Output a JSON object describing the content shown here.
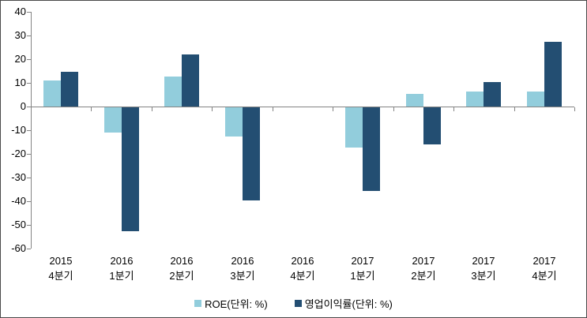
{
  "chart_data": {
    "type": "bar",
    "title": "",
    "xlabel": "",
    "ylabel": "",
    "categories": [
      {
        "line1": "2015",
        "line2": "4분기"
      },
      {
        "line1": "2016",
        "line2": "1분기"
      },
      {
        "line1": "2016",
        "line2": "2분기"
      },
      {
        "line1": "2016",
        "line2": "3분기"
      },
      {
        "line1": "2016",
        "line2": "4분기"
      },
      {
        "line1": "2017",
        "line2": "1분기"
      },
      {
        "line1": "2017",
        "line2": "2분기"
      },
      {
        "line1": "2017",
        "line2": "3분기"
      },
      {
        "line1": "2017",
        "line2": "4분기"
      }
    ],
    "series": [
      {
        "name": "ROE(단위: %)",
        "color": "#92CDDC",
        "values": [
          11,
          -10.5,
          12.6,
          -12.4,
          0,
          -17,
          5.3,
          6.2,
          6.2
        ]
      },
      {
        "name": "영업이익률(단위: %)",
        "color": "#234E72",
        "values": [
          14.8,
          -52.3,
          21.9,
          -39.4,
          0,
          -35.4,
          -15.6,
          10.3,
          27.2
        ]
      }
    ],
    "ylim": [
      -60,
      40
    ],
    "ytick_step": 10,
    "ytick_labels": [
      "40",
      "30",
      "20",
      "10",
      "0",
      "-10",
      "-20",
      "-30",
      "-40",
      "-50",
      "-60"
    ],
    "grid": false,
    "legend_position": "bottom",
    "axis_color": "#848484",
    "text_color": "#000000",
    "background_color": "#ffffff"
  }
}
